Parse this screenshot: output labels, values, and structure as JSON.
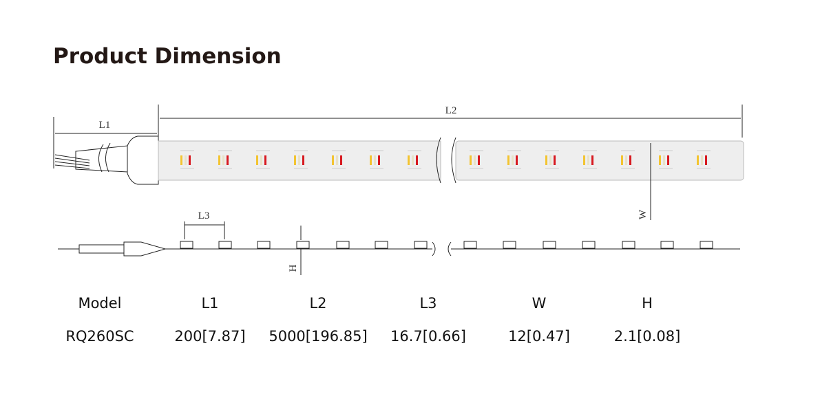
{
  "header": {
    "title": "Product Dimension"
  },
  "diagram": {
    "labels": {
      "l1": "L1",
      "l2": "L2",
      "l3": "L3",
      "w": "W",
      "h": "H"
    }
  },
  "table": {
    "columns": [
      "Model",
      "L1",
      "L2",
      "L3",
      "W",
      "H"
    ],
    "rows": [
      [
        "RQ260SC",
        "200[7.87]",
        "5000[196.85]",
        "16.7[0.66]",
        "12[0.47]",
        "2.1[0.08]"
      ]
    ]
  }
}
